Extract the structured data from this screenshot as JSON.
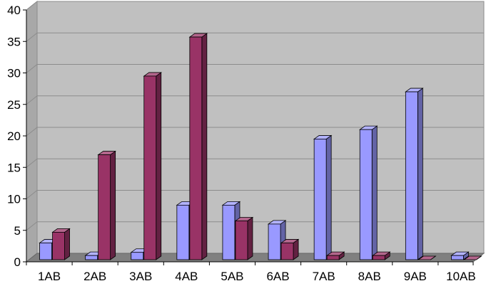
{
  "chart_data": {
    "type": "bar",
    "title": "",
    "xlabel": "",
    "ylabel": "",
    "categories": [
      "1AB",
      "2AB",
      "3AB",
      "4AB",
      "5AB",
      "6AB",
      "7AB",
      "8AB",
      "9AB",
      "10AB"
    ],
    "series": [
      {
        "values": [
          3,
          1,
          1.5,
          9,
          9,
          6,
          19.5,
          21,
          27,
          1
        ],
        "color": "#9999ff"
      },
      {
        "values": [
          4.7,
          17,
          29.5,
          35.7,
          6.5,
          3,
          1,
          1,
          0,
          0
        ],
        "color": "#993366"
      }
    ],
    "ylim": [
      0,
      40
    ],
    "yticks": [
      0,
      5,
      10,
      15,
      20,
      25,
      30,
      35,
      40
    ],
    "grid": true,
    "legend": "none",
    "style": "3d-clustered-bar",
    "colors": {
      "plot_back": "#c0c0c0",
      "floor": "#808080",
      "gridline": "#8c8c8c",
      "axis": "#000000"
    }
  }
}
